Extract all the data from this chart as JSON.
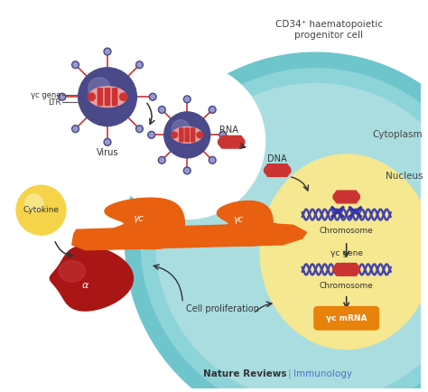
{
  "bg_color": "#ffffff",
  "cell_outer_color": "#6ec5cc",
  "cell_mid_color": "#8dd4d8",
  "cell_inner_color": "#aadde0",
  "nucleus_color": "#f5e890",
  "cytokine_color": "#f5d44a",
  "virus_outer_color": "#4a4a8a",
  "virus_inner_color": "#e8a0a0",
  "rna_color": "#cc3333",
  "orange_shape_color": "#e86010",
  "dark_red_color": "#aa1515",
  "dna_line_color": "#4444aa",
  "title_text": "CD34⁺ haematopoietic\nprogenitor cell",
  "cytoplasm_text": "Cytoplasm",
  "nucleus_text": "Nucleus",
  "virus_text": "Virus",
  "cytokine_text": "Cytokine",
  "rna_text": "RNA",
  "dna_text": "DNA",
  "chromosome_text1": "Chromosome",
  "chromosome_text2": "Chromosome",
  "yc_gene_text": "γc gene",
  "yc_mrna_text": "γc mRNA",
  "cell_prolif_text": "Cell proliferation",
  "nature_reviews_text": "Nature Reviews",
  "immunology_text": "Immunology",
  "gamma_c_gene_text": "γc gene",
  "ltr_text": "LTR",
  "footer_color": "#4477cc",
  "arrow_color": "#333333"
}
